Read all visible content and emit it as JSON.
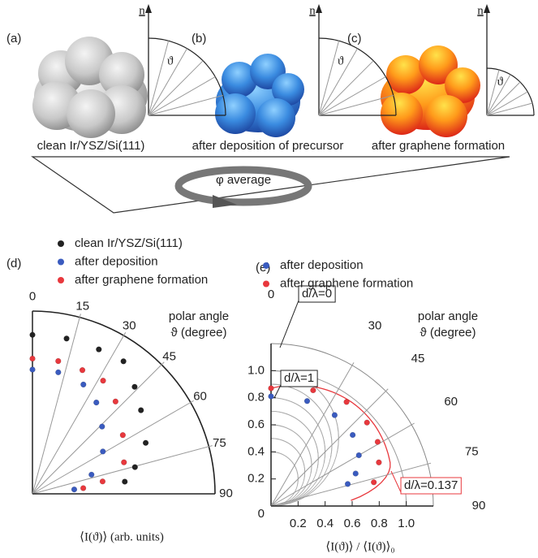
{
  "panels": [
    {
      "label": "(a)",
      "caption": "clean Ir/YSZ/Si(111)"
    },
    {
      "label": "(b)",
      "caption": "after deposition of precursor"
    },
    {
      "label": "(c)",
      "caption": "after graphene formation"
    }
  ],
  "guide_labels": {
    "normal": "n",
    "polar": "ϑ"
  },
  "average_label": "φ average",
  "chart_data": [
    {
      "type": "polar-scatter",
      "panel_label": "(d)",
      "angle_label": [
        "polar angle",
        "ϑ (degree)"
      ],
      "radial_label": "⟨I(ϑ)⟩ (arb. units)",
      "rlim": [
        0,
        1
      ],
      "angle_ticks": [
        0,
        15,
        30,
        45,
        60,
        75,
        90
      ],
      "series": [
        {
          "name": "clean Ir/YSZ/Si(111)",
          "color": "#222222",
          "x": [
            0,
            12.4,
            24.7,
            34.5,
            43.7,
            52.4,
            65.8,
            75.4,
            82.5
          ],
          "values": [
            0.87,
            0.87,
            0.87,
            0.88,
            0.81,
            0.75,
            0.68,
            0.58,
            0.51
          ]
        },
        {
          "name": "after deposition",
          "color": "#3a5bbf",
          "x": [
            0,
            12,
            25,
            35,
            46,
            59,
            72,
            84
          ],
          "values": [
            0.68,
            0.68,
            0.66,
            0.61,
            0.53,
            0.45,
            0.34,
            0.23
          ]
        },
        {
          "name": "after graphene formation",
          "color": "#e8383d",
          "x": [
            0,
            11,
            22,
            32,
            42,
            57,
            71,
            80,
            83.6
          ],
          "values": [
            0.74,
            0.74,
            0.73,
            0.73,
            0.68,
            0.59,
            0.53,
            0.39,
            0.28
          ]
        }
      ]
    },
    {
      "type": "polar-scatter",
      "panel_label": "(e)",
      "angle_label": [
        "polar angle",
        "ϑ (degree)"
      ],
      "xlabel": "⟨I(ϑ)⟩ / ⟨I(ϑ)⟩₀",
      "rlim": [
        0,
        1.2
      ],
      "angle_ticks": [
        0,
        30,
        45,
        60,
        75,
        90
      ],
      "xticks": [
        0.2,
        0.4,
        0.6,
        0.8,
        {
          "value": 1,
          "label": "1.0"
        }
      ],
      "yticks": [
        0,
        0.2,
        0.4,
        0.6,
        0.8,
        {
          "value": 1,
          "label": "1.0"
        }
      ],
      "annotations": [
        {
          "text": "d/λ=0",
          "color": "#222222"
        },
        {
          "text": "d/λ=1",
          "color": "#222222"
        },
        {
          "text": "d/λ=0.137",
          "color": "#e8383d"
        }
      ],
      "series": [
        {
          "name": "after deposition",
          "color": "#3a5bbf",
          "x": [
            0,
            19,
            35,
            49,
            60,
            69,
            74
          ],
          "values": [
            0.81,
            0.82,
            0.82,
            0.8,
            0.75,
            0.67,
            0.59
          ]
        },
        {
          "name": "after graphene formation",
          "color": "#e8383d",
          "x": [
            0,
            20,
            36,
            49,
            59,
            68,
            77
          ],
          "values": [
            0.87,
            0.91,
            0.95,
            0.94,
            0.92,
            0.86,
            0.78
          ]
        }
      ]
    }
  ]
}
